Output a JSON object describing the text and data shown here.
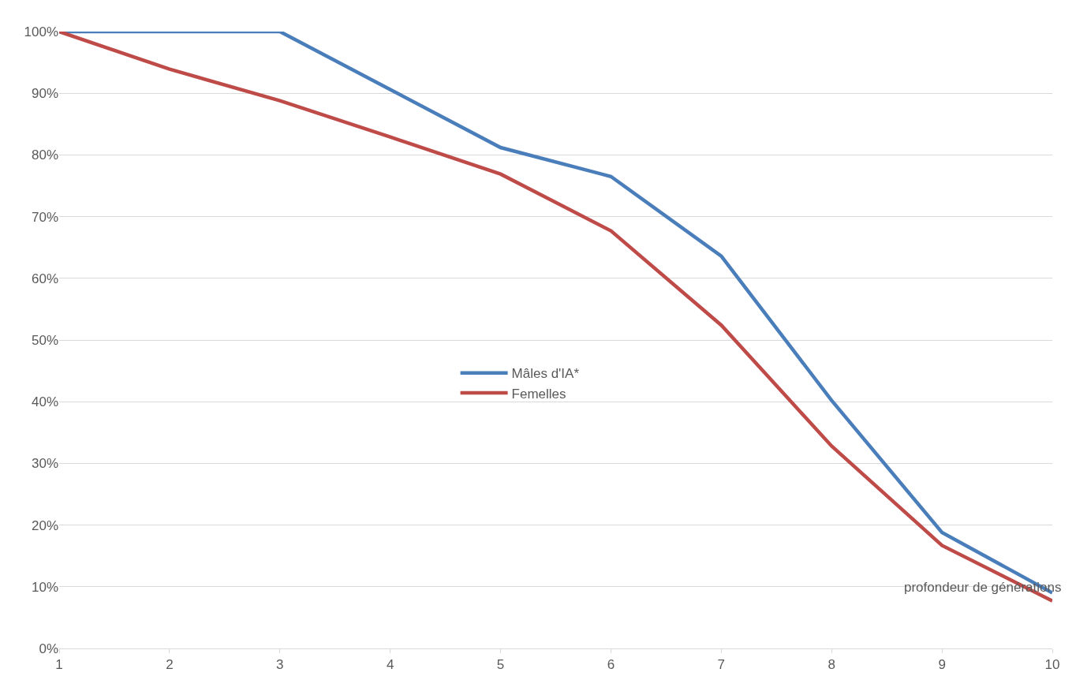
{
  "chart_data": {
    "type": "line",
    "xlabel": "profondeur de générations",
    "x": [
      1,
      2,
      3,
      4,
      5,
      6,
      7,
      8,
      9,
      10
    ],
    "series": [
      {
        "name": "Mâles d'IA*",
        "color": "#4a7ebb",
        "values": [
          100,
          100,
          100,
          90.6,
          81.2,
          76.5,
          63.6,
          40.2,
          18.8,
          9
        ]
      },
      {
        "name": "Femelles",
        "color": "#be4b48",
        "values": [
          100,
          93.9,
          88.8,
          82.9,
          76.9,
          67.7,
          52.4,
          32.8,
          16.7,
          7.7
        ]
      }
    ],
    "xlim": [
      1,
      10
    ],
    "xticks": [
      1,
      2,
      3,
      4,
      5,
      6,
      7,
      8,
      9,
      10
    ],
    "ylim": [
      0,
      100
    ],
    "yticks": [
      {
        "value": 0,
        "label": "0%"
      },
      {
        "value": 10,
        "label": "10%"
      },
      {
        "value": 20,
        "label": "20%"
      },
      {
        "value": 30,
        "label": "30%"
      },
      {
        "value": 40,
        "label": "40%"
      },
      {
        "value": 50,
        "label": "50%"
      },
      {
        "value": 60,
        "label": "60%"
      },
      {
        "value": 70,
        "label": "70%"
      },
      {
        "value": 80,
        "label": "80%"
      },
      {
        "value": 90,
        "label": "90%"
      },
      {
        "value": 100,
        "label": "100%"
      }
    ],
    "grid": "y",
    "legend": "center",
    "marker": "none",
    "line_style": "solid"
  }
}
